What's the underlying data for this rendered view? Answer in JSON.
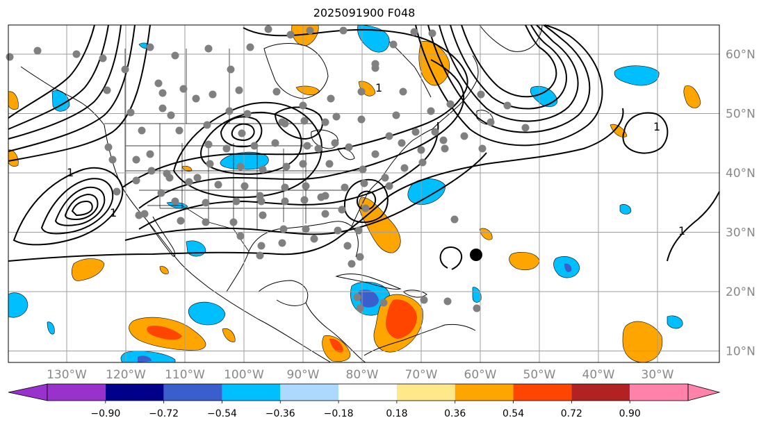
{
  "title": "2025091900 F048",
  "map": {
    "projection": "equirectangular",
    "lon_ticks": [
      "130°W",
      "120°W",
      "110°W",
      "100°W",
      "90°W",
      "80°W",
      "70°W",
      "60°W",
      "50°W",
      "40°W",
      "30°W"
    ],
    "lat_ticks": [
      "60°N",
      "50°N",
      "40°N",
      "30°N",
      "20°N",
      "10°N"
    ],
    "grid": true,
    "contour_color": "#000000",
    "contour_label": "1",
    "coast_color": "#000000",
    "station_color": "#808080",
    "marker_color": "#000000"
  },
  "colorbar": {
    "orientation": "horizontal",
    "extend": "both",
    "tick_labels": [
      "−0.90",
      "−0.72",
      "−0.54",
      "−0.36",
      "−0.18",
      "0.18",
      "0.36",
      "0.54",
      "0.72",
      "0.90"
    ],
    "colors": [
      "#9932cc",
      "#9932cc",
      "#00008b",
      "#3a5fcd",
      "#00bfff",
      "#add8ff",
      "#ffffff",
      "#ffe88a",
      "#ffa500",
      "#ff4500",
      "#b22222",
      "#ff82ab",
      "#ff82ab"
    ]
  }
}
